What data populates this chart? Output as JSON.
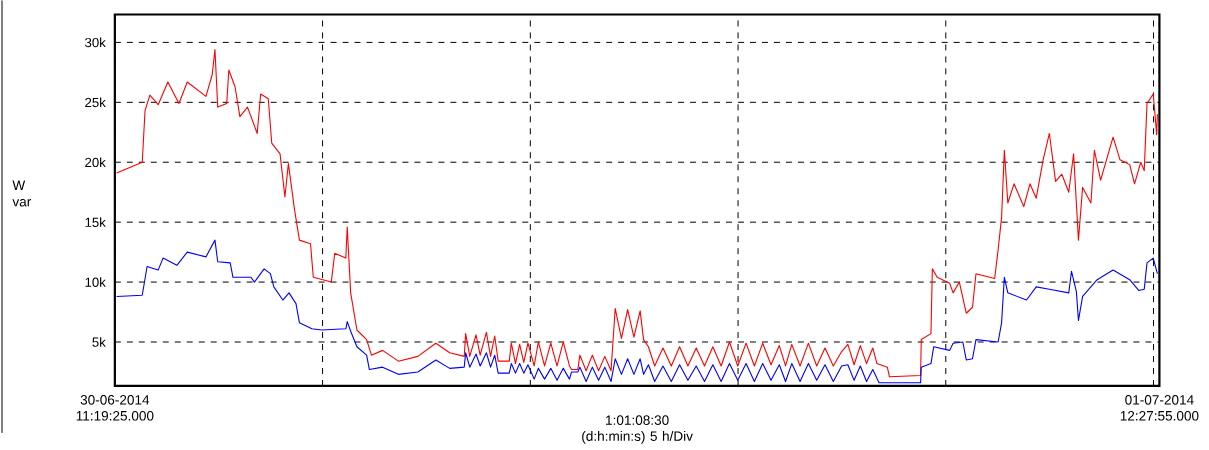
{
  "chart_data": {
    "type": "line",
    "ylabel": "W var",
    "xlabel": "1:01:08:30 (d:h:min:s) 5 h/Div",
    "xlim": [
      "2014-06-30T11:19:25",
      "2014-07-01T12:27:55"
    ],
    "xticks": [
      {
        "value": "2014-06-30T11:19:25",
        "label": "30-06-2014 11:19:25.000"
      },
      {
        "value": "2014-06-30T16:19:25",
        "label": null
      },
      {
        "value": "2014-06-30T21:19:25",
        "label": null
      },
      {
        "value": "2014-07-01T02:19:25",
        "label": null
      },
      {
        "value": "2014-07-01T07:19:25",
        "label": null
      },
      {
        "value": "2014-07-01T12:19:25",
        "label": null
      },
      {
        "value": "2014-07-01T12:27:55",
        "label": "01-07-2014 12:27:55.000"
      }
    ],
    "ylim": [
      1330,
      32330
    ],
    "yticks": [
      {
        "value": 5000,
        "label": "5k"
      },
      {
        "value": 10000,
        "label": "10k"
      },
      {
        "value": 15000,
        "label": "15k"
      },
      {
        "value": 20000,
        "label": "20k"
      },
      {
        "value": 25000,
        "label": "25k"
      },
      {
        "value": 30000,
        "label": "30k"
      }
    ],
    "grid": true,
    "line_style": "solid",
    "series": [
      {
        "color": "#ff0000",
        "x": [
          "2014-06-30T11:22",
          "2014-06-30T11:59",
          "2014-06-30T12:03",
          "2014-06-30T12:10",
          "2014-06-30T12:22",
          "2014-06-30T12:36",
          "2014-06-30T12:52",
          "2014-06-30T13:04",
          "2014-06-30T13:31",
          "2014-06-30T13:40",
          "2014-06-30T13:44",
          "2014-06-30T13:48",
          "2014-06-30T14:01",
          "2014-06-30T14:04",
          "2014-06-30T14:13",
          "2014-06-30T14:20",
          "2014-06-30T14:31",
          "2014-06-30T14:45",
          "2014-06-30T14:50",
          "2014-06-30T15:01",
          "2014-06-30T15:06",
          "2014-06-30T15:18",
          "2014-06-30T15:25",
          "2014-06-30T15:30",
          "2014-06-30T15:39",
          "2014-06-30T15:46",
          "2014-06-30T16:02",
          "2014-06-30T16:06",
          "2014-06-30T16:32",
          "2014-06-30T16:37",
          "2014-06-30T16:53",
          "2014-06-30T16:55",
          "2014-06-30T17:00",
          "2014-06-30T17:09",
          "2014-06-30T17:23",
          "2014-06-30T17:30",
          "2014-06-30T17:46",
          "2014-06-30T18:09",
          "2014-06-30T18:37",
          "2014-06-30T19:03",
          "2014-06-30T19:23",
          "2014-06-30T19:44",
          "2014-06-30T19:46",
          "2014-06-30T19:52",
          "2014-06-30T20:01",
          "2014-06-30T20:07",
          "2014-06-30T20:16",
          "2014-06-30T20:22",
          "2014-06-30T20:28",
          "2014-06-30T20:33",
          "2014-06-30T20:49",
          "2014-06-30T20:52",
          "2014-06-30T20:58",
          "2014-06-30T21:04",
          "2014-06-30T21:10",
          "2014-06-30T21:16",
          "2014-06-30T21:25",
          "2014-06-30T21:31",
          "2014-06-30T21:40",
          "2014-06-30T21:49",
          "2014-06-30T21:58",
          "2014-06-30T22:07",
          "2014-06-30T22:16",
          "2014-06-30T22:19",
          "2014-06-30T22:28",
          "2014-06-30T22:31",
          "2014-06-30T22:40",
          "2014-06-30T22:49",
          "2014-06-30T22:58",
          "2014-06-30T23:07",
          "2014-06-30T23:16",
          "2014-06-30T23:22",
          "2014-06-30T23:31",
          "2014-06-30T23:40",
          "2014-06-30T23:49",
          "2014-06-30T23:58",
          "2014-07-01T00:03",
          "2014-07-01T00:10",
          "2014-07-01T00:19",
          "2014-07-01T00:31",
          "2014-07-01T00:43",
          "2014-07-01T00:55",
          "2014-07-01T01:07",
          "2014-07-01T01:19",
          "2014-07-01T01:31",
          "2014-07-01T01:43",
          "2014-07-01T01:55",
          "2014-07-01T02:07",
          "2014-07-01T02:19",
          "2014-07-01T02:31",
          "2014-07-01T02:43",
          "2014-07-01T02:55",
          "2014-07-01T03:07",
          "2014-07-01T03:19",
          "2014-07-01T03:28",
          "2014-07-01T03:37",
          "2014-07-01T03:49",
          "2014-07-01T04:01",
          "2014-07-01T04:13",
          "2014-07-01T04:25",
          "2014-07-01T04:37",
          "2014-07-01T04:49",
          "2014-07-01T04:58",
          "2014-07-01T05:07",
          "2014-07-01T05:16",
          "2014-07-01T05:25",
          "2014-07-01T05:34",
          "2014-07-01T05:40",
          "2014-07-01T05:55",
          "2014-07-01T05:58",
          "2014-07-01T06:43",
          "2014-07-01T06:44",
          "2014-07-01T06:58",
          "2014-07-01T07:00",
          "2014-07-01T07:07",
          "2014-07-01T07:25",
          "2014-07-01T07:30",
          "2014-07-01T07:39",
          "2014-07-01T07:49",
          "2014-07-01T07:58",
          "2014-07-01T08:03",
          "2014-07-01T08:30",
          "2014-07-01T08:35",
          "2014-07-01T08:40",
          "2014-07-01T08:44",
          "2014-07-01T08:49",
          "2014-07-01T08:58",
          "2014-07-01T09:12",
          "2014-07-01T09:21",
          "2014-07-01T09:30",
          "2014-07-01T09:40",
          "2014-07-01T09:49",
          "2014-07-01T09:58",
          "2014-07-01T10:07",
          "2014-07-01T10:17",
          "2014-07-01T10:24",
          "2014-07-01T10:31",
          "2014-07-01T10:37",
          "2014-07-01T10:49",
          "2014-07-01T10:54",
          "2014-07-01T11:03",
          "2014-07-01T11:21",
          "2014-07-01T11:31",
          "2014-07-01T11:45",
          "2014-07-01T11:52",
          "2014-07-01T12:01",
          "2014-07-01T12:06",
          "2014-07-01T12:10",
          "2014-07-01T12:19",
          "2014-07-01T12:24",
          "2014-07-01T12:25"
        ],
        "values": [
          19100,
          20000,
          24300,
          25600,
          24800,
          26700,
          24900,
          26700,
          25500,
          27300,
          29400,
          24600,
          24900,
          27700,
          26300,
          23800,
          24600,
          22400,
          25700,
          25300,
          21600,
          20700,
          17100,
          19900,
          16000,
          13500,
          13200,
          10400,
          10000,
          12400,
          12000,
          14600,
          9100,
          6000,
          5200,
          3900,
          4300,
          3400,
          3800,
          4900,
          4100,
          3800,
          5700,
          3800,
          5600,
          3900,
          5800,
          3800,
          5500,
          3400,
          3400,
          4900,
          3200,
          4800,
          3300,
          4900,
          3000,
          5000,
          3000,
          4900,
          3000,
          5000,
          3000,
          2700,
          2700,
          3900,
          2600,
          3900,
          2600,
          3800,
          2600,
          7800,
          5300,
          7700,
          5400,
          7600,
          5200,
          4600,
          3000,
          4500,
          3000,
          4600,
          3000,
          4500,
          3000,
          4600,
          3000,
          5000,
          3000,
          4900,
          3000,
          4900,
          3100,
          4700,
          3000,
          4800,
          3000,
          4900,
          3000,
          4500,
          3000,
          4200,
          4800,
          3100,
          4700,
          3200,
          4500,
          3200,
          2900,
          2100,
          2200,
          5200,
          5700,
          11100,
          10400,
          9900,
          9100,
          10000,
          7400,
          7900,
          10700,
          10300,
          12700,
          15400,
          21000,
          16600,
          18200,
          16300,
          18200,
          17000,
          20200,
          22400,
          18400,
          19000,
          17500,
          20700,
          13500,
          17900,
          16600,
          21000,
          18500,
          22100,
          20200,
          19800,
          18200,
          20000,
          19300,
          24900,
          25700,
          22300,
          24000
        ]
      },
      {
        "color": "#0000ff",
        "x": [
          "2014-06-30T11:22",
          "2014-06-30T11:59",
          "2014-06-30T12:06",
          "2014-06-30T12:22",
          "2014-06-30T12:29",
          "2014-06-30T12:49",
          "2014-06-30T13:04",
          "2014-06-30T13:31",
          "2014-06-30T13:44",
          "2014-06-30T13:48",
          "2014-06-30T14:06",
          "2014-06-30T14:10",
          "2014-06-30T14:36",
          "2014-06-30T14:41",
          "2014-06-30T14:55",
          "2014-06-30T15:04",
          "2014-06-30T15:09",
          "2014-06-30T15:22",
          "2014-06-30T15:31",
          "2014-06-30T15:41",
          "2014-06-30T15:46",
          "2014-06-30T16:04",
          "2014-06-30T16:18",
          "2014-06-30T16:53",
          "2014-06-30T16:55",
          "2014-06-30T17:00",
          "2014-06-30T17:09",
          "2014-06-30T17:23",
          "2014-06-30T17:27",
          "2014-06-30T17:46",
          "2014-06-30T18:09",
          "2014-06-30T18:37",
          "2014-06-30T19:03",
          "2014-06-30T19:23",
          "2014-06-30T19:44",
          "2014-06-30T19:46",
          "2014-06-30T19:52",
          "2014-06-30T20:01",
          "2014-06-30T20:07",
          "2014-06-30T20:16",
          "2014-06-30T20:22",
          "2014-06-30T20:28",
          "2014-06-30T20:33",
          "2014-06-30T20:49",
          "2014-06-30T20:52",
          "2014-06-30T20:58",
          "2014-06-30T21:04",
          "2014-06-30T21:10",
          "2014-06-30T21:16",
          "2014-06-30T21:25",
          "2014-06-30T21:31",
          "2014-06-30T21:40",
          "2014-06-30T21:49",
          "2014-06-30T21:58",
          "2014-06-30T22:07",
          "2014-06-30T22:16",
          "2014-06-30T22:19",
          "2014-06-30T22:28",
          "2014-06-30T22:31",
          "2014-06-30T22:40",
          "2014-06-30T22:49",
          "2014-06-30T22:58",
          "2014-06-30T23:07",
          "2014-06-30T23:16",
          "2014-06-30T23:22",
          "2014-06-30T23:31",
          "2014-06-30T23:40",
          "2014-06-30T23:49",
          "2014-06-30T23:58",
          "2014-07-01T00:03",
          "2014-07-01T00:10",
          "2014-07-01T00:19",
          "2014-07-01T00:31",
          "2014-07-01T00:43",
          "2014-07-01T00:55",
          "2014-07-01T01:07",
          "2014-07-01T01:19",
          "2014-07-01T01:31",
          "2014-07-01T01:43",
          "2014-07-01T01:55",
          "2014-07-01T02:07",
          "2014-07-01T02:19",
          "2014-07-01T02:31",
          "2014-07-01T02:43",
          "2014-07-01T02:55",
          "2014-07-01T03:07",
          "2014-07-01T03:19",
          "2014-07-01T03:28",
          "2014-07-01T03:37",
          "2014-07-01T03:49",
          "2014-07-01T04:01",
          "2014-07-01T04:13",
          "2014-07-01T04:25",
          "2014-07-01T04:37",
          "2014-07-01T04:49",
          "2014-07-01T04:58",
          "2014-07-01T05:07",
          "2014-07-01T05:16",
          "2014-07-01T05:25",
          "2014-07-01T05:34",
          "2014-07-01T05:43",
          "2014-07-01T05:57",
          "2014-07-01T06:43",
          "2014-07-01T06:44",
          "2014-07-01T06:58",
          "2014-07-01T07:02",
          "2014-07-01T07:25",
          "2014-07-01T07:30",
          "2014-07-01T07:44",
          "2014-07-01T07:49",
          "2014-07-01T07:58",
          "2014-07-01T08:03",
          "2014-07-01T08:35",
          "2014-07-01T08:40",
          "2014-07-01T08:44",
          "2014-07-01T08:49",
          "2014-07-01T09:16",
          "2014-07-01T09:30",
          "2014-07-01T09:49",
          "2014-07-01T10:17",
          "2014-07-01T10:21",
          "2014-07-01T10:28",
          "2014-07-01T10:31",
          "2014-07-01T10:37",
          "2014-07-01T10:58",
          "2014-07-01T11:21",
          "2014-07-01T11:45",
          "2014-07-01T11:58",
          "2014-07-01T12:06",
          "2014-07-01T12:10",
          "2014-07-01T12:19",
          "2014-07-01T12:25"
        ],
        "values": [
          8800,
          8900,
          11300,
          11000,
          12000,
          11400,
          12500,
          12100,
          13500,
          11700,
          11600,
          10400,
          10400,
          10000,
          11100,
          10700,
          9600,
          8500,
          9100,
          8200,
          6600,
          6100,
          6000,
          6100,
          6700,
          5900,
          4600,
          3900,
          2700,
          2900,
          2300,
          2500,
          3500,
          2800,
          2900,
          4100,
          2900,
          4000,
          3000,
          4100,
          2900,
          3900,
          2400,
          2400,
          3200,
          2400,
          3200,
          2400,
          3100,
          1900,
          2800,
          1900,
          2800,
          1800,
          2800,
          1900,
          2500,
          2500,
          2900,
          1700,
          2900,
          1800,
          2900,
          1700,
          3600,
          2300,
          3600,
          2300,
          3600,
          2300,
          3100,
          1700,
          3000,
          1700,
          3100,
          1800,
          3000,
          1700,
          3100,
          1700,
          3200,
          1800,
          3200,
          1700,
          3200,
          1800,
          3100,
          1700,
          3200,
          1700,
          3200,
          1800,
          3100,
          1700,
          3000,
          3100,
          1800,
          3000,
          1700,
          2700,
          1600,
          1600,
          1600,
          2900,
          3200,
          4600,
          4300,
          4900,
          5000,
          3500,
          3600,
          5200,
          5000,
          6600,
          10400,
          9100,
          8500,
          9600,
          9400,
          9100,
          10900,
          9200,
          6800,
          8800,
          10200,
          11000,
          10200,
          9300,
          9400,
          11600,
          12000,
          10700
        ]
      }
    ]
  }
}
